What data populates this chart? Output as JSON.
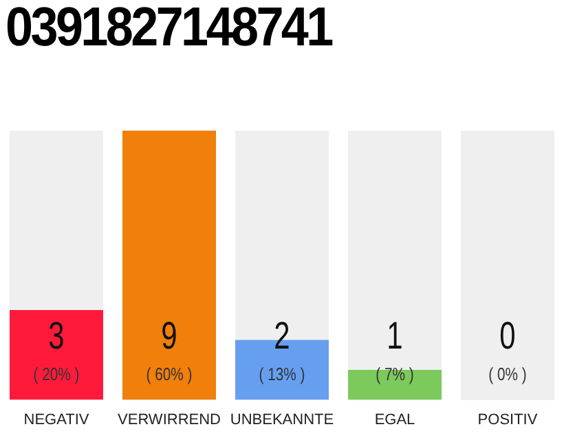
{
  "chart_data": {
    "type": "bar",
    "title": "0391827148741",
    "categories": [
      "NEGATIV",
      "VERWIRREND",
      "UNBEKANNTE",
      "EGAL",
      "POSITIV"
    ],
    "values": [
      3,
      9,
      2,
      1,
      0
    ],
    "colors": [
      "#ff1a3c",
      "#f07f0c",
      "#669ff0",
      "#7cc95c",
      "#22aa44"
    ],
    "value_labels": [
      "3\n( 20% )",
      "9\n( 60% )",
      "2\n( 13% )",
      "1\n( 7% )",
      "0\n( 0% )"
    ],
    "grid": false,
    "legend": false
  }
}
